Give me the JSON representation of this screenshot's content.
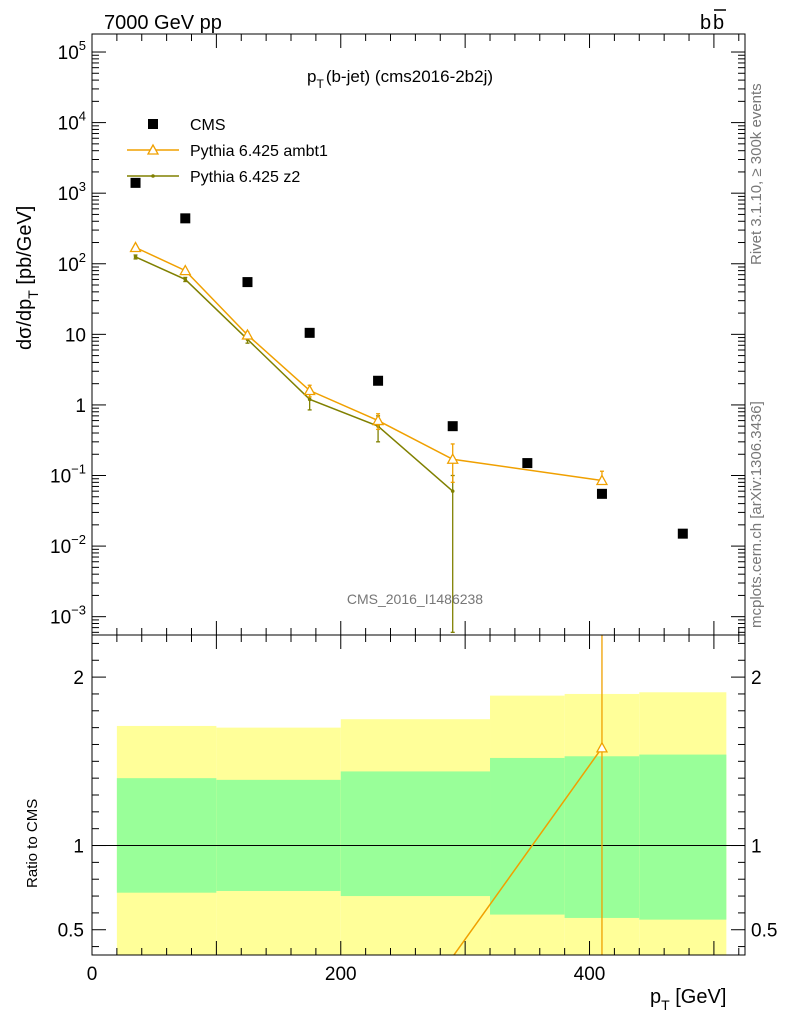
{
  "header": {
    "energy_label": "7000 GeV pp",
    "process_main": "b",
    "process_bar": "b"
  },
  "side_labels": {
    "rivet": "Rivet 3.1.10, ≥ 300k events",
    "mcplots": "mcplots.cern.ch [arXiv:1306.3436]"
  },
  "colors": {
    "cms": "#000000",
    "ambt1": "#f0a000",
    "z2": "#808000",
    "band_inner": "#99ff99",
    "band_outer": "#ffff99"
  },
  "chart_data": [
    {
      "type": "scatter",
      "panel": "main",
      "title_main": "p",
      "title_sub": "T",
      "title_rest": "(b-jet) (cms2016-2b2j)",
      "ylabel_main": "dσ/dp",
      "ylabel_sub": "T",
      "ylabel_rest": " [pb/GeV]",
      "yscale": "log",
      "ylim": [
        0.00055,
        180000
      ],
      "xlim": [
        0,
        525
      ],
      "y_ticks": [
        {
          "v": 100000,
          "base": "10",
          "exp": "5"
        },
        {
          "v": 10000,
          "base": "10",
          "exp": "4"
        },
        {
          "v": 1000,
          "base": "10",
          "exp": "3"
        },
        {
          "v": 100,
          "base": "10",
          "exp": "2"
        },
        {
          "v": 10,
          "base": "10",
          "exp": ""
        },
        {
          "v": 1,
          "base": "1",
          "exp": ""
        },
        {
          "v": 0.1,
          "base": "10",
          "exp": "−1"
        },
        {
          "v": 0.01,
          "base": "10",
          "exp": "−2"
        },
        {
          "v": 0.001,
          "base": "10",
          "exp": "−3"
        }
      ],
      "watermark": "CMS_2016_I1486238",
      "legend_position": "top-left",
      "series": [
        {
          "name": "CMS",
          "marker": "filled-square",
          "x": [
            35,
            75,
            125,
            175,
            230,
            290,
            350,
            410,
            475
          ],
          "y": [
            1400,
            440,
            55,
            10.5,
            2.2,
            0.5,
            0.15,
            0.055,
            0.015
          ]
        },
        {
          "name": "Pythia 6.425 ambt1",
          "marker": "open-triangle",
          "x": [
            35,
            75,
            125,
            175,
            230,
            290,
            410
          ],
          "y": [
            170,
            80,
            9.8,
            1.6,
            0.6,
            0.17,
            0.085
          ],
          "y_err_low": [
            10,
            5,
            1.0,
            0.3,
            0.15,
            0.09,
            0.0007
          ],
          "y_err_high": [
            10,
            5,
            1.0,
            0.3,
            0.15,
            0.11,
            0.03
          ]
        },
        {
          "name": "Pythia 6.425 z2",
          "marker": "dot",
          "x": [
            35,
            75,
            125,
            175,
            230,
            290
          ],
          "y": [
            125,
            60,
            8.5,
            1.2,
            0.5,
            0.06
          ],
          "y_err_low": [
            8,
            4,
            1.0,
            0.35,
            0.2,
            0.0594
          ],
          "y_err_high": [
            8,
            4,
            1.0,
            0.35,
            0.2,
            0.04
          ]
        }
      ]
    },
    {
      "type": "line",
      "panel": "ratio",
      "ylabel": "Ratio to CMS",
      "yscale": "linear",
      "ylim": [
        0.35,
        2.25
      ],
      "xlim": [
        0,
        525
      ],
      "x_ticks": [
        0,
        200,
        400
      ],
      "y_ticks": [
        0.5,
        1,
        2
      ],
      "y_tick_labels": [
        "0.5",
        "1",
        "2"
      ],
      "xlabel_main": "p",
      "xlabel_sub": "T",
      "xlabel_rest": " [GeV]",
      "bands": {
        "x_edges": [
          20,
          100,
          200,
          320,
          380,
          440,
          510
        ],
        "inner_low": [
          0.72,
          0.73,
          0.7,
          0.59,
          0.57,
          0.56
        ],
        "inner_high": [
          1.4,
          1.39,
          1.44,
          1.52,
          1.53,
          1.54
        ],
        "outer_low": [
          0.35,
          0.35,
          0.35,
          0.35,
          0.35,
          0.35
        ],
        "outer_high": [
          1.71,
          1.7,
          1.75,
          1.89,
          1.9,
          1.91
        ]
      },
      "series": [
        {
          "name": "Pythia 6.425 ambt1",
          "x": [
            290,
            410
          ],
          "y": [
            0.34,
            1.58
          ],
          "y_err_low": [
            0,
            1.6
          ],
          "y_err_high": [
            0,
            1.0
          ]
        }
      ]
    }
  ]
}
